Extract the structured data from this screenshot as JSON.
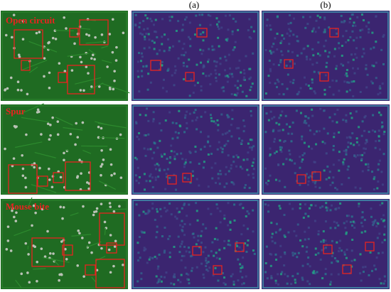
{
  "column_labels": [
    "(a)",
    "(b)"
  ],
  "rows": [
    {
      "label": "Open circuit"
    },
    {
      "label": "Spur"
    },
    {
      "label": "Mouse bite"
    }
  ]
}
